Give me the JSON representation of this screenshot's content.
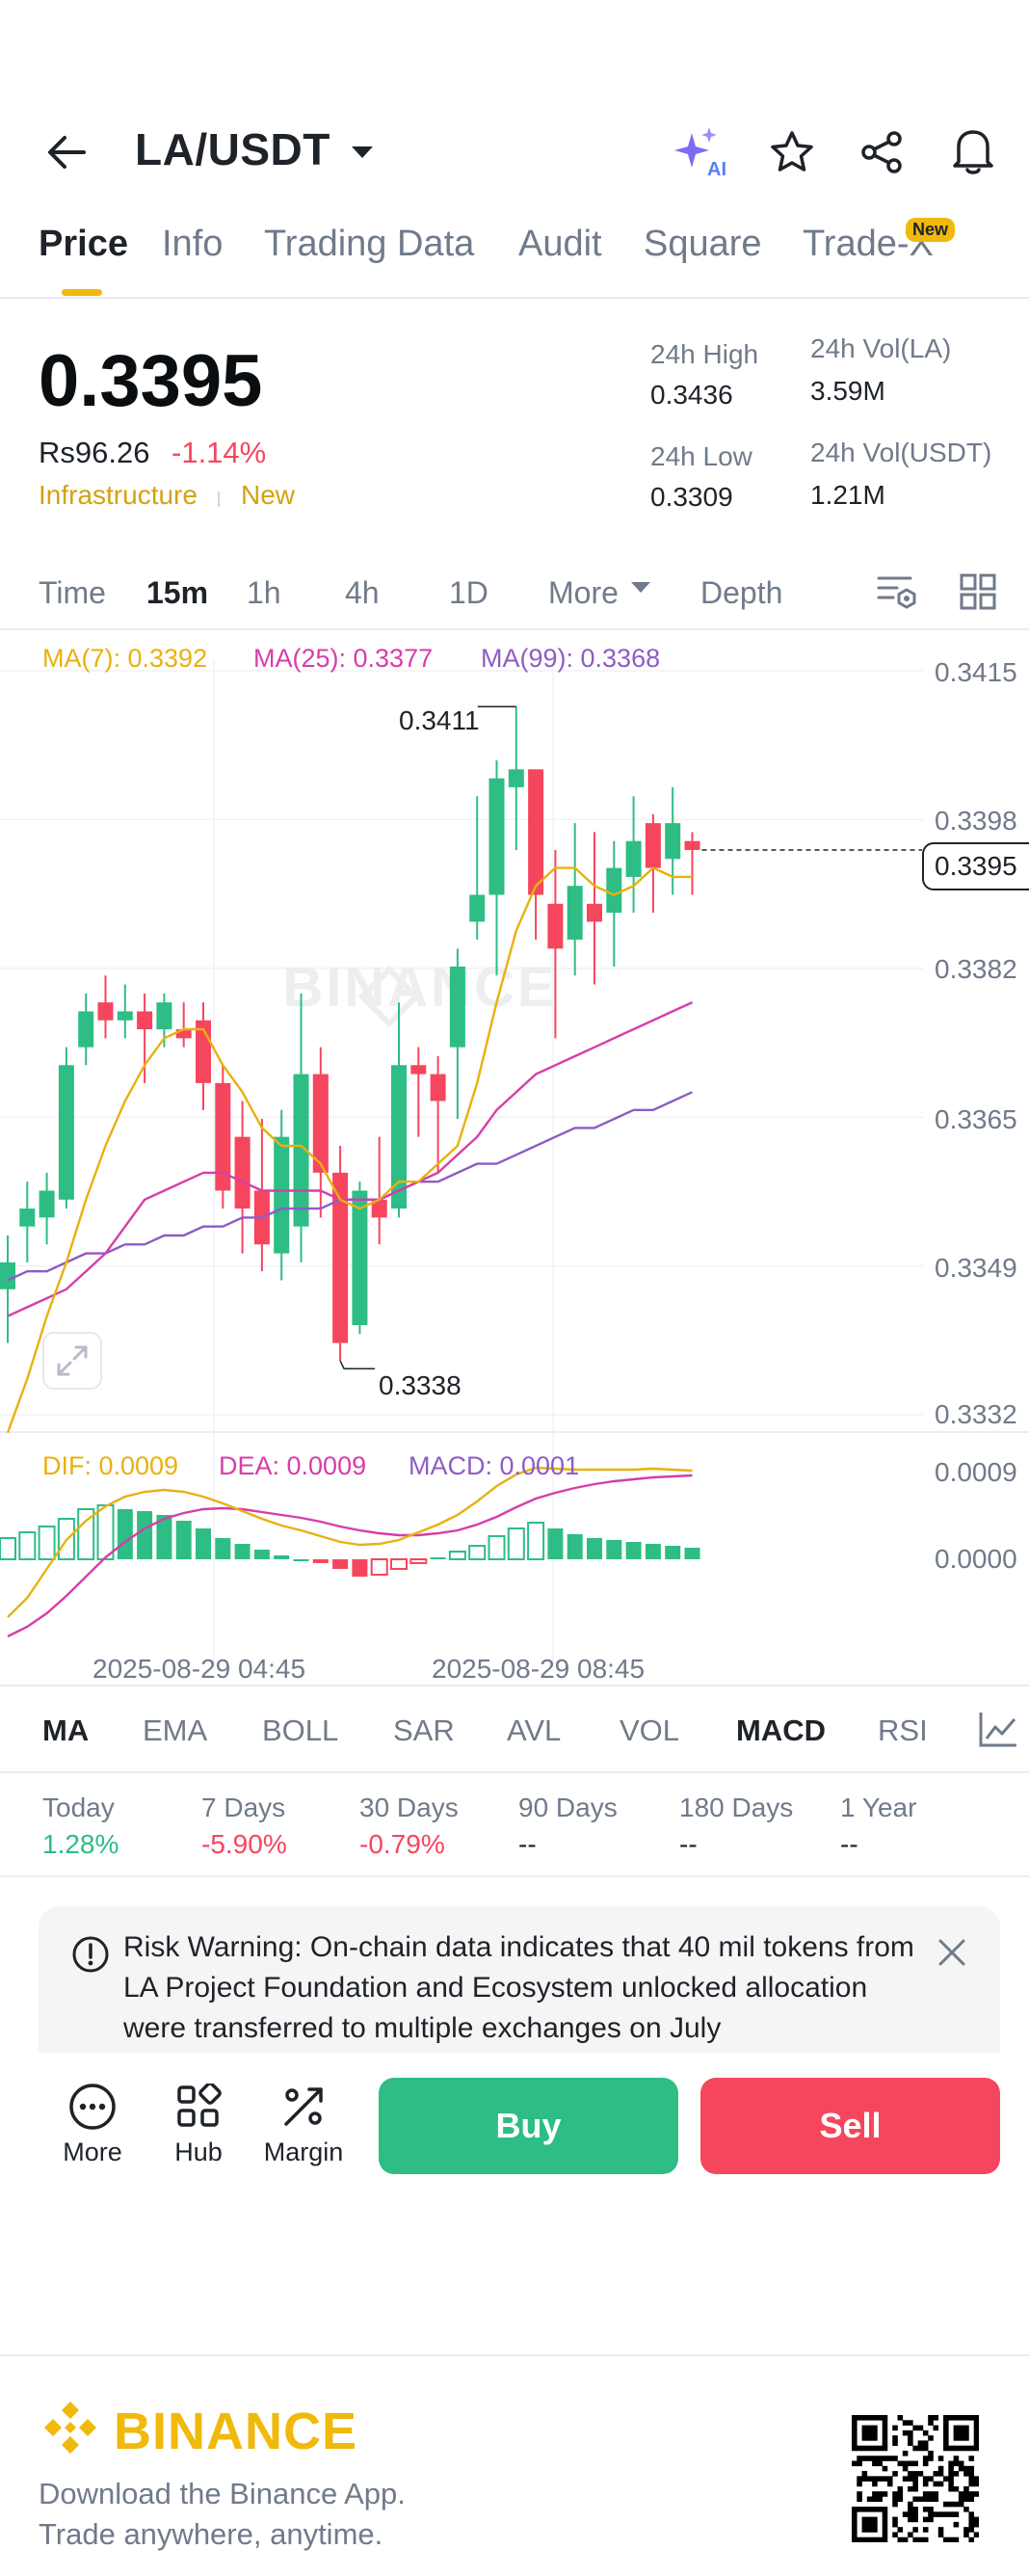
{
  "header": {
    "pair": "LA/USDT",
    "icons": [
      "back-arrow-icon",
      "chevron-down-icon",
      "ai-sparkle-icon",
      "star-icon",
      "share-icon",
      "bell-icon"
    ]
  },
  "tabs": [
    {
      "label": "Price",
      "active": true
    },
    {
      "label": "Info"
    },
    {
      "label": "Trading Data"
    },
    {
      "label": "Audit"
    },
    {
      "label": "Square"
    },
    {
      "label": "Trade-X"
    }
  ],
  "new_badge": "New",
  "price": {
    "last": "0.3395",
    "fiat": "Rs96.26",
    "change": "-1.14%",
    "tag_category": "Infrastructure",
    "tag_new": "New"
  },
  "stats": {
    "high_label": "24h High",
    "high": "0.3436",
    "low_label": "24h Low",
    "low": "0.3309",
    "vol_base_label": "24h Vol(LA)",
    "vol_base": "3.59M",
    "vol_quote_label": "24h Vol(USDT)",
    "vol_quote": "1.21M"
  },
  "timeframes": [
    {
      "label": "Time"
    },
    {
      "label": "15m",
      "active": true
    },
    {
      "label": "1h"
    },
    {
      "label": "4h"
    },
    {
      "label": "1D"
    },
    {
      "label": "More"
    },
    {
      "label": "Depth"
    }
  ],
  "chart_data": {
    "type": "candlestick",
    "interval": "15m",
    "ma_legend": {
      "ma7": "MA(7): 0.3392",
      "ma25": "MA(25): 0.3377",
      "ma99": "MA(99): 0.3368"
    },
    "price_axis": [
      "0.3415",
      "0.3398",
      "0.3382",
      "0.3365",
      "0.3349",
      "0.3332"
    ],
    "ylim": [
      0.3332,
      0.3415
    ],
    "current_price_label": "0.3395",
    "current_price": 0.3395,
    "high_marker": "0.3411",
    "low_marker": "0.3338",
    "time_labels": [
      "2025-08-29 04:45",
      "2025-08-29 08:45"
    ],
    "watermark": "BINANCE",
    "candles": [
      {
        "o": 0.3346,
        "h": 0.3352,
        "l": 0.334,
        "c": 0.3349
      },
      {
        "o": 0.3353,
        "h": 0.3358,
        "l": 0.3349,
        "c": 0.3355
      },
      {
        "o": 0.3354,
        "h": 0.3359,
        "l": 0.3351,
        "c": 0.3357
      },
      {
        "o": 0.3356,
        "h": 0.3373,
        "l": 0.3355,
        "c": 0.3371
      },
      {
        "o": 0.3373,
        "h": 0.3379,
        "l": 0.3371,
        "c": 0.3377
      },
      {
        "o": 0.3378,
        "h": 0.3381,
        "l": 0.3374,
        "c": 0.3376
      },
      {
        "o": 0.3376,
        "h": 0.338,
        "l": 0.3374,
        "c": 0.3377
      },
      {
        "o": 0.3377,
        "h": 0.3379,
        "l": 0.3369,
        "c": 0.3375
      },
      {
        "o": 0.3375,
        "h": 0.3379,
        "l": 0.3373,
        "c": 0.3378
      },
      {
        "o": 0.3375,
        "h": 0.3378,
        "l": 0.3373,
        "c": 0.3374
      },
      {
        "o": 0.3376,
        "h": 0.3378,
        "l": 0.3366,
        "c": 0.3369
      },
      {
        "o": 0.3369,
        "h": 0.3371,
        "l": 0.3355,
        "c": 0.3357
      },
      {
        "o": 0.3363,
        "h": 0.3367,
        "l": 0.335,
        "c": 0.3355
      },
      {
        "o": 0.3357,
        "h": 0.3365,
        "l": 0.3348,
        "c": 0.3351
      },
      {
        "o": 0.335,
        "h": 0.3366,
        "l": 0.3347,
        "c": 0.3363
      },
      {
        "o": 0.3353,
        "h": 0.3379,
        "l": 0.3349,
        "c": 0.337
      },
      {
        "o": 0.337,
        "h": 0.3373,
        "l": 0.3354,
        "c": 0.3359
      },
      {
        "o": 0.3359,
        "h": 0.3362,
        "l": 0.3338,
        "c": 0.334
      },
      {
        "o": 0.3342,
        "h": 0.3358,
        "l": 0.3341,
        "c": 0.3357
      },
      {
        "o": 0.3356,
        "h": 0.3363,
        "l": 0.3351,
        "c": 0.3354
      },
      {
        "o": 0.3355,
        "h": 0.3378,
        "l": 0.3354,
        "c": 0.3371
      },
      {
        "o": 0.3371,
        "h": 0.3373,
        "l": 0.3363,
        "c": 0.337
      },
      {
        "o": 0.337,
        "h": 0.3372,
        "l": 0.3359,
        "c": 0.3367
      },
      {
        "o": 0.3373,
        "h": 0.3384,
        "l": 0.3365,
        "c": 0.3382
      },
      {
        "o": 0.3387,
        "h": 0.3401,
        "l": 0.3385,
        "c": 0.339
      },
      {
        "o": 0.339,
        "h": 0.3405,
        "l": 0.3381,
        "c": 0.3403
      },
      {
        "o": 0.3402,
        "h": 0.3411,
        "l": 0.3395,
        "c": 0.3404
      },
      {
        "o": 0.3404,
        "h": 0.3404,
        "l": 0.3385,
        "c": 0.339
      },
      {
        "o": 0.3389,
        "h": 0.3395,
        "l": 0.3374,
        "c": 0.3384
      },
      {
        "o": 0.3385,
        "h": 0.3398,
        "l": 0.3381,
        "c": 0.3391
      },
      {
        "o": 0.3389,
        "h": 0.3397,
        "l": 0.338,
        "c": 0.3387
      },
      {
        "o": 0.3388,
        "h": 0.3396,
        "l": 0.3382,
        "c": 0.3393
      },
      {
        "o": 0.3392,
        "h": 0.3401,
        "l": 0.3388,
        "c": 0.3396
      },
      {
        "o": 0.3398,
        "h": 0.3399,
        "l": 0.3388,
        "c": 0.3393
      },
      {
        "o": 0.3394,
        "h": 0.3402,
        "l": 0.339,
        "c": 0.3398
      },
      {
        "o": 0.3396,
        "h": 0.3397,
        "l": 0.339,
        "c": 0.3395
      }
    ],
    "ma7": [
      0.333,
      0.3336,
      0.3343,
      0.3349,
      0.3356,
      0.3362,
      0.3367,
      0.3371,
      0.3374,
      0.3375,
      0.3375,
      0.3371,
      0.3368,
      0.3364,
      0.3362,
      0.3362,
      0.336,
      0.3356,
      0.3355,
      0.3356,
      0.3358,
      0.3358,
      0.336,
      0.3362,
      0.3369,
      0.3378,
      0.3386,
      0.3391,
      0.3393,
      0.3393,
      0.3391,
      0.339,
      0.3391,
      0.3393,
      0.3392,
      0.3392
    ],
    "ma25": [
      0.3343,
      0.3344,
      0.3345,
      0.3346,
      0.3348,
      0.335,
      0.3353,
      0.3356,
      0.3357,
      0.3358,
      0.3359,
      0.3359,
      0.3358,
      0.3357,
      0.3357,
      0.3357,
      0.3357,
      0.3356,
      0.3356,
      0.3356,
      0.3357,
      0.3358,
      0.3359,
      0.3361,
      0.3363,
      0.3366,
      0.3368,
      0.337,
      0.3371,
      0.3372,
      0.3373,
      0.3374,
      0.3375,
      0.3376,
      0.3377,
      0.3378
    ],
    "ma99": [
      0.3347,
      0.3348,
      0.3348,
      0.3349,
      0.335,
      0.335,
      0.3351,
      0.3351,
      0.3352,
      0.3352,
      0.3353,
      0.3353,
      0.3354,
      0.3354,
      0.3355,
      0.3355,
      0.3355,
      0.3356,
      0.3356,
      0.3356,
      0.3357,
      0.3358,
      0.3358,
      0.3359,
      0.336,
      0.336,
      0.3361,
      0.3362,
      0.3363,
      0.3364,
      0.3364,
      0.3365,
      0.3366,
      0.3366,
      0.3367,
      0.3368
    ],
    "macd_legend": {
      "dif": "DIF: 0.0009",
      "dea": "DEA: 0.0009",
      "macd": "MACD: 0.0001"
    },
    "macd_axis": [
      "0.0009",
      "0.0000"
    ],
    "macd_hist": [
      0.00022,
      0.00028,
      0.00034,
      0.00042,
      0.00052,
      0.00056,
      0.00052,
      0.0005,
      0.00046,
      0.0004,
      0.00032,
      0.00022,
      0.00016,
      0.0001,
      4e-05,
      0.0,
      -4e-05,
      -0.0001,
      -0.00018,
      -0.00016,
      -0.0001,
      -4e-05,
      2e-05,
      8e-05,
      0.00014,
      0.00024,
      0.00032,
      0.00038,
      0.00032,
      0.00026,
      0.00022,
      0.0002,
      0.00018,
      0.00016,
      0.00014,
      0.00012
    ],
    "dif": [
      -0.0006,
      -0.0004,
      -0.0001,
      0.0002,
      0.0004,
      0.00055,
      0.00065,
      0.0007,
      0.00072,
      0.0007,
      0.00065,
      0.00058,
      0.0005,
      0.00042,
      0.00035,
      0.0003,
      0.00024,
      0.00018,
      0.00015,
      0.00016,
      0.0002,
      0.00028,
      0.00036,
      0.00046,
      0.0006,
      0.00076,
      0.00088,
      0.00095,
      0.00094,
      0.00093,
      0.00093,
      0.00093,
      0.00093,
      0.00094,
      0.00093,
      0.00092
    ],
    "dea": [
      -0.0008,
      -0.0007,
      -0.00056,
      -0.00038,
      -0.00018,
      2e-05,
      0.00018,
      0.00032,
      0.00042,
      0.00048,
      0.00052,
      0.00053,
      0.00052,
      0.00049,
      0.00046,
      0.00043,
      0.00039,
      0.00034,
      0.0003,
      0.00027,
      0.00025,
      0.00025,
      0.00027,
      0.0003,
      0.00036,
      0.00044,
      0.00054,
      0.00063,
      0.00069,
      0.00074,
      0.00078,
      0.00081,
      0.00083,
      0.00085,
      0.00086,
      0.00087
    ]
  },
  "indicators": [
    {
      "label": "MA",
      "active": true
    },
    {
      "label": "EMA"
    },
    {
      "label": "BOLL"
    },
    {
      "label": "SAR"
    },
    {
      "label": "AVL"
    },
    {
      "label": "VOL"
    },
    {
      "label": "MACD",
      "active": true
    },
    {
      "label": "RSI"
    }
  ],
  "performance": [
    {
      "label": "Today",
      "value": "1.28%",
      "trend": "up"
    },
    {
      "label": "7 Days",
      "value": "-5.90%",
      "trend": "down"
    },
    {
      "label": "30 Days",
      "value": "-0.79%",
      "trend": "down"
    },
    {
      "label": "90 Days",
      "value": "--"
    },
    {
      "label": "180 Days",
      "value": "--"
    },
    {
      "label": "1 Year",
      "value": "--"
    }
  ],
  "risk_warning": {
    "text": "Risk Warning: On-chain data indicates that 40 mil tokens from LA Project Foundation and Ecosystem unlocked allocation were transferred to multiple exchanges on July"
  },
  "action_bar": {
    "more_label": "More",
    "hub_label": "Hub",
    "margin_label": "Margin",
    "buy_label": "Buy",
    "sell_label": "Sell"
  },
  "footer": {
    "brand": "BINANCE",
    "line1": "Download the Binance App.",
    "line2": "Trade anywhere, anytime."
  },
  "colors": {
    "up": "#2ebd85",
    "down": "#f6465d",
    "brand": "#f0b90b",
    "ma7": "#e8b10f",
    "ma25": "#d63ea9",
    "ma99": "#8e5cc4"
  }
}
